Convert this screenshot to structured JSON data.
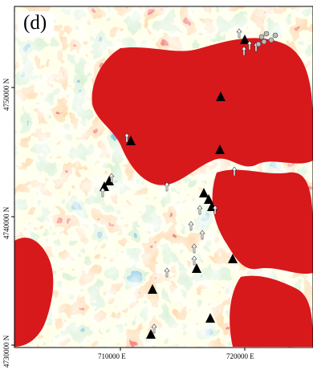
{
  "panel": {
    "label": "(d)"
  },
  "axes": {
    "x_ticks": [
      {
        "label": "710000  E"
      },
      {
        "label": "720000  E"
      }
    ],
    "y_ticks": [
      {
        "label": "4750000  N"
      },
      {
        "label": "4740000  N"
      },
      {
        "label": "4730000  N"
      }
    ]
  },
  "colors": {
    "red": "#d7191c",
    "orange": "#fdae61",
    "cream": "#ffffbf",
    "green": "#abdda4",
    "blue": "#2b83ba",
    "frame": "#000000"
  },
  "legend_classes": [
    "red",
    "orange",
    "cream",
    "green",
    "blue"
  ],
  "markers": {
    "triangle_symbol": "black-triangle",
    "arrow_symbol": "white-up-arrow",
    "circle_symbol": "grey-circle"
  }
}
